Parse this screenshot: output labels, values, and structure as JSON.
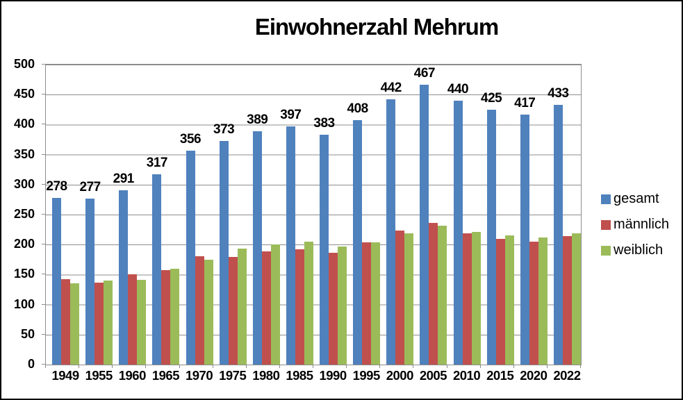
{
  "title": "Einwohnerzahl Mehrum",
  "colors": {
    "gesamt": "#4F81BD",
    "maennlich": "#C0504D",
    "weiblich": "#9BBB59",
    "grid": "#8C8C8C",
    "text": "#000000",
    "background": "#FFFFFF",
    "frame_border": "#000000"
  },
  "legend": {
    "position": "right",
    "items": [
      "gesamt",
      "männlich",
      "weiblich"
    ]
  },
  "chart_data": {
    "type": "bar",
    "title": "Einwohnerzahl Mehrum",
    "xlabel": "",
    "ylabel": "",
    "ylim": [
      0,
      500
    ],
    "ytick_step": 50,
    "grid": "horizontal",
    "legend_position": "right",
    "data_labels_on_series": "gesamt",
    "categories": [
      "1949",
      "1955",
      "1960",
      "1965",
      "1970",
      "1975",
      "1980",
      "1985",
      "1990",
      "1995",
      "2000",
      "2005",
      "2010",
      "2015",
      "2020",
      "2022"
    ],
    "series": [
      {
        "name": "gesamt",
        "color": "#4F81BD",
        "values": [
          278,
          277,
          291,
          317,
          356,
          373,
          389,
          397,
          383,
          408,
          442,
          467,
          440,
          425,
          417,
          433
        ]
      },
      {
        "name": "männlich",
        "color": "#C0504D",
        "values": [
          142,
          137,
          150,
          157,
          181,
          180,
          189,
          192,
          186,
          204,
          223,
          236,
          219,
          210,
          205,
          214
        ]
      },
      {
        "name": "weiblich",
        "color": "#9BBB59",
        "values": [
          136,
          140,
          141,
          160,
          175,
          193,
          200,
          205,
          197,
          204,
          219,
          231,
          221,
          215,
          212,
          219
        ]
      }
    ]
  }
}
